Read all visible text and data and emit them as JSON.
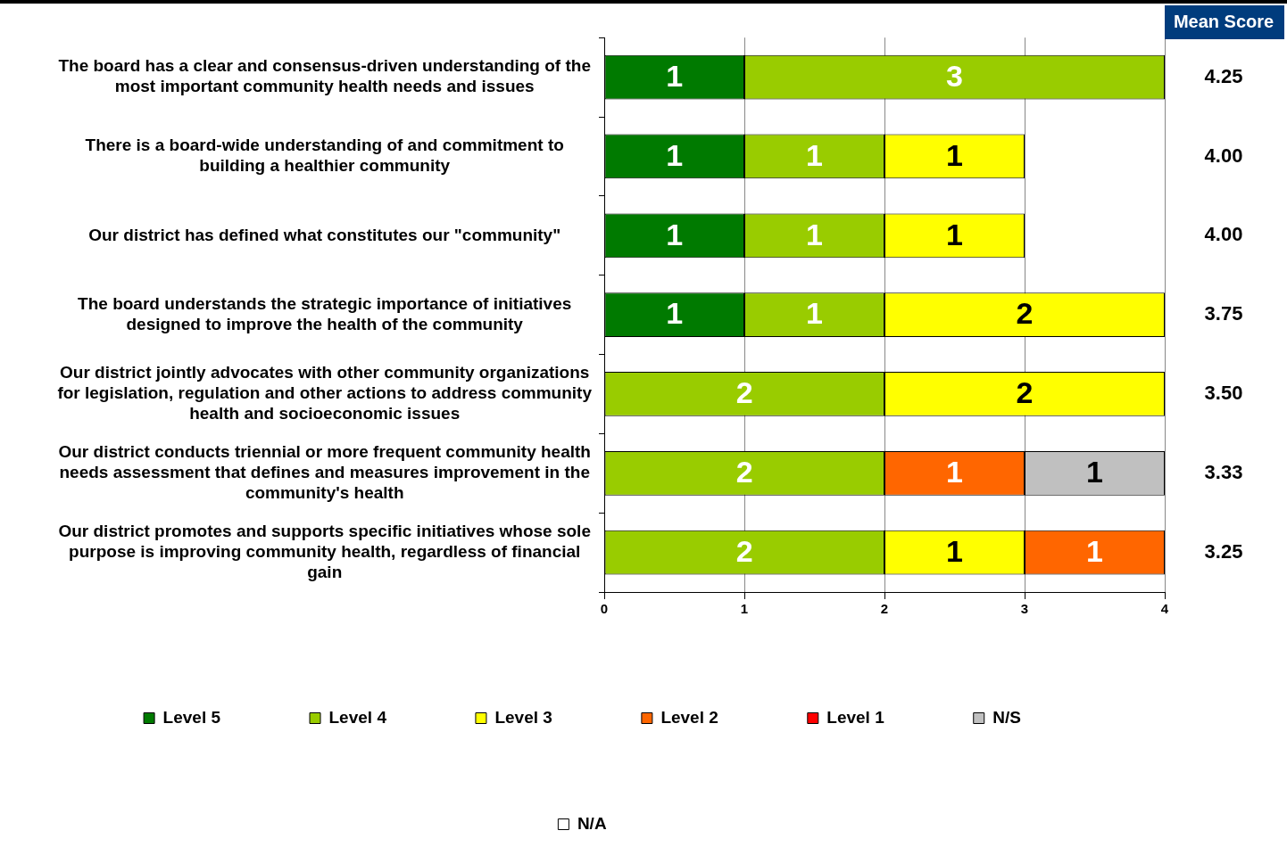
{
  "chart_data": {
    "type": "bar",
    "orientation": "horizontal",
    "stacked": true,
    "categories": [
      "The board has a clear and consensus-driven understanding of the most important community health needs and issues",
      "There is a board-wide understanding of and commitment to building a healthier community",
      "Our district has defined what constitutes our \"community\"",
      "The board understands the strategic importance of initiatives designed to improve the health of the community",
      "Our district jointly advocates with other community organizations for legislation, regulation and other actions to address community health and socioeconomic issues",
      "Our district conducts triennial or more frequent community health needs assessment that defines and measures improvement in the community's health",
      "Our district promotes and supports specific initiatives whose sole purpose is improving community health, regardless of financial gain"
    ],
    "series": [
      {
        "name": "Level 5",
        "color": "#007a00",
        "values": [
          1,
          1,
          1,
          1,
          null,
          null,
          null
        ]
      },
      {
        "name": "Level 4",
        "color": "#99cc00",
        "values": [
          3,
          1,
          1,
          1,
          2,
          2,
          2
        ]
      },
      {
        "name": "Level 3",
        "color": "#ffff00",
        "values": [
          null,
          1,
          1,
          2,
          2,
          null,
          1
        ]
      },
      {
        "name": "Level 2",
        "color": "#ff6600",
        "values": [
          null,
          null,
          null,
          null,
          null,
          1,
          1
        ]
      },
      {
        "name": "Level 1",
        "color": "#ff0000",
        "values": [
          null,
          null,
          null,
          null,
          null,
          null,
          null
        ]
      },
      {
        "name": "N/S",
        "color": "#c0c0c0",
        "values": [
          null,
          null,
          null,
          null,
          null,
          1,
          null
        ]
      },
      {
        "name": "N/A",
        "color": "#ffffff",
        "values": [
          null,
          null,
          null,
          null,
          null,
          null,
          null
        ]
      }
    ],
    "xlim": [
      0,
      4
    ],
    "xticks": [
      0,
      1,
      2,
      3,
      4
    ],
    "grid": "x",
    "legend": "bottom",
    "data_labels": true,
    "annotations": [
      "Mean Score",
      "4.25",
      "4.00",
      "4.00",
      "3.75",
      "3.50",
      "3.33",
      "3.25"
    ]
  }
}
